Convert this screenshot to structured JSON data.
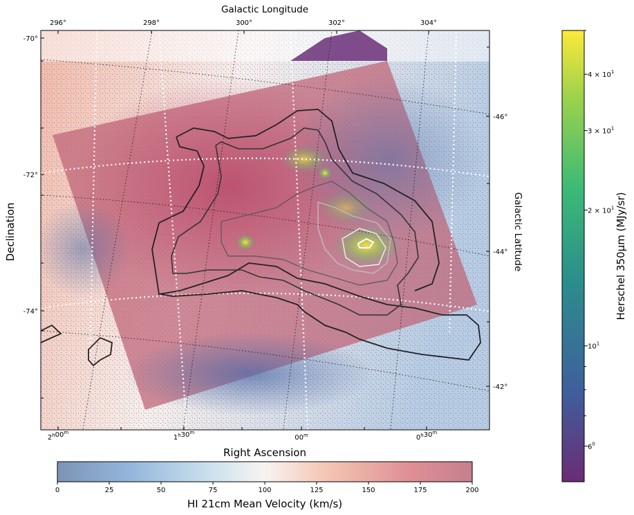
{
  "chart_data": {
    "type": "heatmap",
    "title": "",
    "axes": {
      "bottom": {
        "label": "Right Ascension",
        "ticks": [
          {
            "value": 2.0,
            "text": "2h00m"
          },
          {
            "value": 1.5,
            "text": "1h30m"
          },
          {
            "value": 1.0,
            "text": "00m"
          },
          {
            "value": 0.5,
            "text": "0h30m"
          }
        ]
      },
      "left": {
        "label": "Declination",
        "ticks": [
          {
            "value": -70,
            "text": "-70°"
          },
          {
            "value": -72,
            "text": "-72°"
          },
          {
            "value": -74,
            "text": "-74°"
          }
        ]
      },
      "top": {
        "label": "Galactic Longitude",
        "ticks": [
          {
            "value": 296,
            "text": "296°"
          },
          {
            "value": 298,
            "text": "298°"
          },
          {
            "value": 300,
            "text": "300°"
          },
          {
            "value": 302,
            "text": "302°"
          },
          {
            "value": 304,
            "text": "304°"
          }
        ]
      },
      "right": {
        "label": "Galactic Latitude",
        "ticks": [
          {
            "value": -46,
            "text": "-46°"
          },
          {
            "value": -44,
            "text": "-44°"
          },
          {
            "value": -42,
            "text": "-42°"
          }
        ]
      }
    },
    "colorbar_velocity": {
      "label": "HI 21cm Mean Velocity (km/s)",
      "range": [
        0,
        200
      ],
      "ticks": [
        0,
        25,
        50,
        75,
        100,
        125,
        150,
        175,
        200
      ],
      "colors": [
        "#7d93b5",
        "#94b8dc",
        "#cfe3ef",
        "#f7f3f0",
        "#f4c5b3",
        "#df8f95",
        "#c57f8f"
      ]
    },
    "colorbar_herschel": {
      "label": "Herschel 350μm (MJy/sr)",
      "scale": "log",
      "range": [
        5,
        50
      ],
      "ticks": [
        {
          "value": 6,
          "mantissa": "6",
          "exponent": "0"
        },
        {
          "value": 10,
          "mantissa": "10",
          "exponent": "1"
        },
        {
          "value": 20,
          "mantissa": "2 × 10",
          "exponent": "1"
        },
        {
          "value": 30,
          "mantissa": "3 × 10",
          "exponent": "1"
        },
        {
          "value": 40,
          "mantissa": "4 × 10",
          "exponent": "1"
        }
      ],
      "colors": [
        "#6a2c74",
        "#3f5f9c",
        "#2b8f8c",
        "#3cba76",
        "#9bd24b",
        "#fde93a"
      ]
    }
  }
}
